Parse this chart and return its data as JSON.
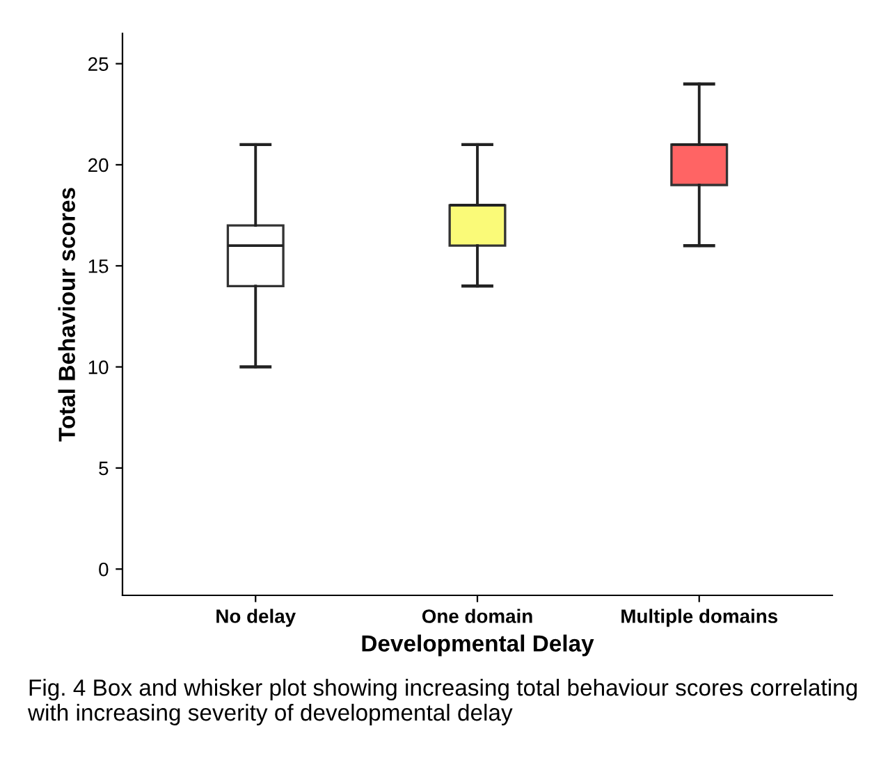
{
  "chart_data": {
    "type": "box",
    "xlabel": "Developmental Delay",
    "ylabel": "Total Behaviour scores",
    "categories": [
      "No delay",
      "One domain",
      "Multiple domains"
    ],
    "colors": [
      "#ffffff",
      "#fafa78",
      "#ff6464"
    ],
    "boxes": [
      {
        "low": 10,
        "q1": 14,
        "median": 16,
        "q3": 17,
        "high": 21
      },
      {
        "low": 14,
        "q1": 16,
        "median": 18,
        "q3": 18,
        "high": 21
      },
      {
        "low": 16,
        "q1": 19,
        "median": 21,
        "q3": 21,
        "high": 24
      }
    ],
    "ylim": [
      -1.3,
      26.5
    ],
    "yticks": [
      0,
      5,
      10,
      15,
      20,
      25
    ],
    "grid": false,
    "annotations": [
      "Fig. 4 Box and whisker plot showing increasing total behaviour scores correlating with increasing severity of developmental delay"
    ]
  }
}
